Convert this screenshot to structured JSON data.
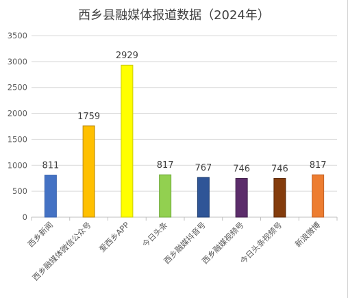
{
  "chart_data": {
    "type": "bar",
    "title": "西乡县融媒体报道数据（2024年）",
    "xlabel": "",
    "ylabel": "",
    "ylim": [
      0,
      3500
    ],
    "yticks": [
      0,
      500,
      1000,
      1500,
      2000,
      2500,
      3000,
      3500
    ],
    "grid": true,
    "legend": "none",
    "categories": [
      "西乡新闻",
      "西乡融媒体微信公众号",
      "爱西乡APP",
      "今日头条",
      "西乡融媒抖音号",
      "西乡融媒视频号",
      "今日头条视频号",
      "新浪微博"
    ],
    "values": [
      811,
      1759,
      2929,
      817,
      767,
      746,
      746,
      817
    ],
    "colors": [
      "#4472c4",
      "#ffc000",
      "#ffff00",
      "#92d050",
      "#2f5597",
      "#5c2d6b",
      "#843c0c",
      "#ed7d31"
    ],
    "edge_colors": [
      "#3a63ad",
      "#b8860b",
      "#c9c900",
      "#6ea83a",
      "#1f3d70",
      "#3f1d4a",
      "#5c2808",
      "#c0622a"
    ]
  }
}
